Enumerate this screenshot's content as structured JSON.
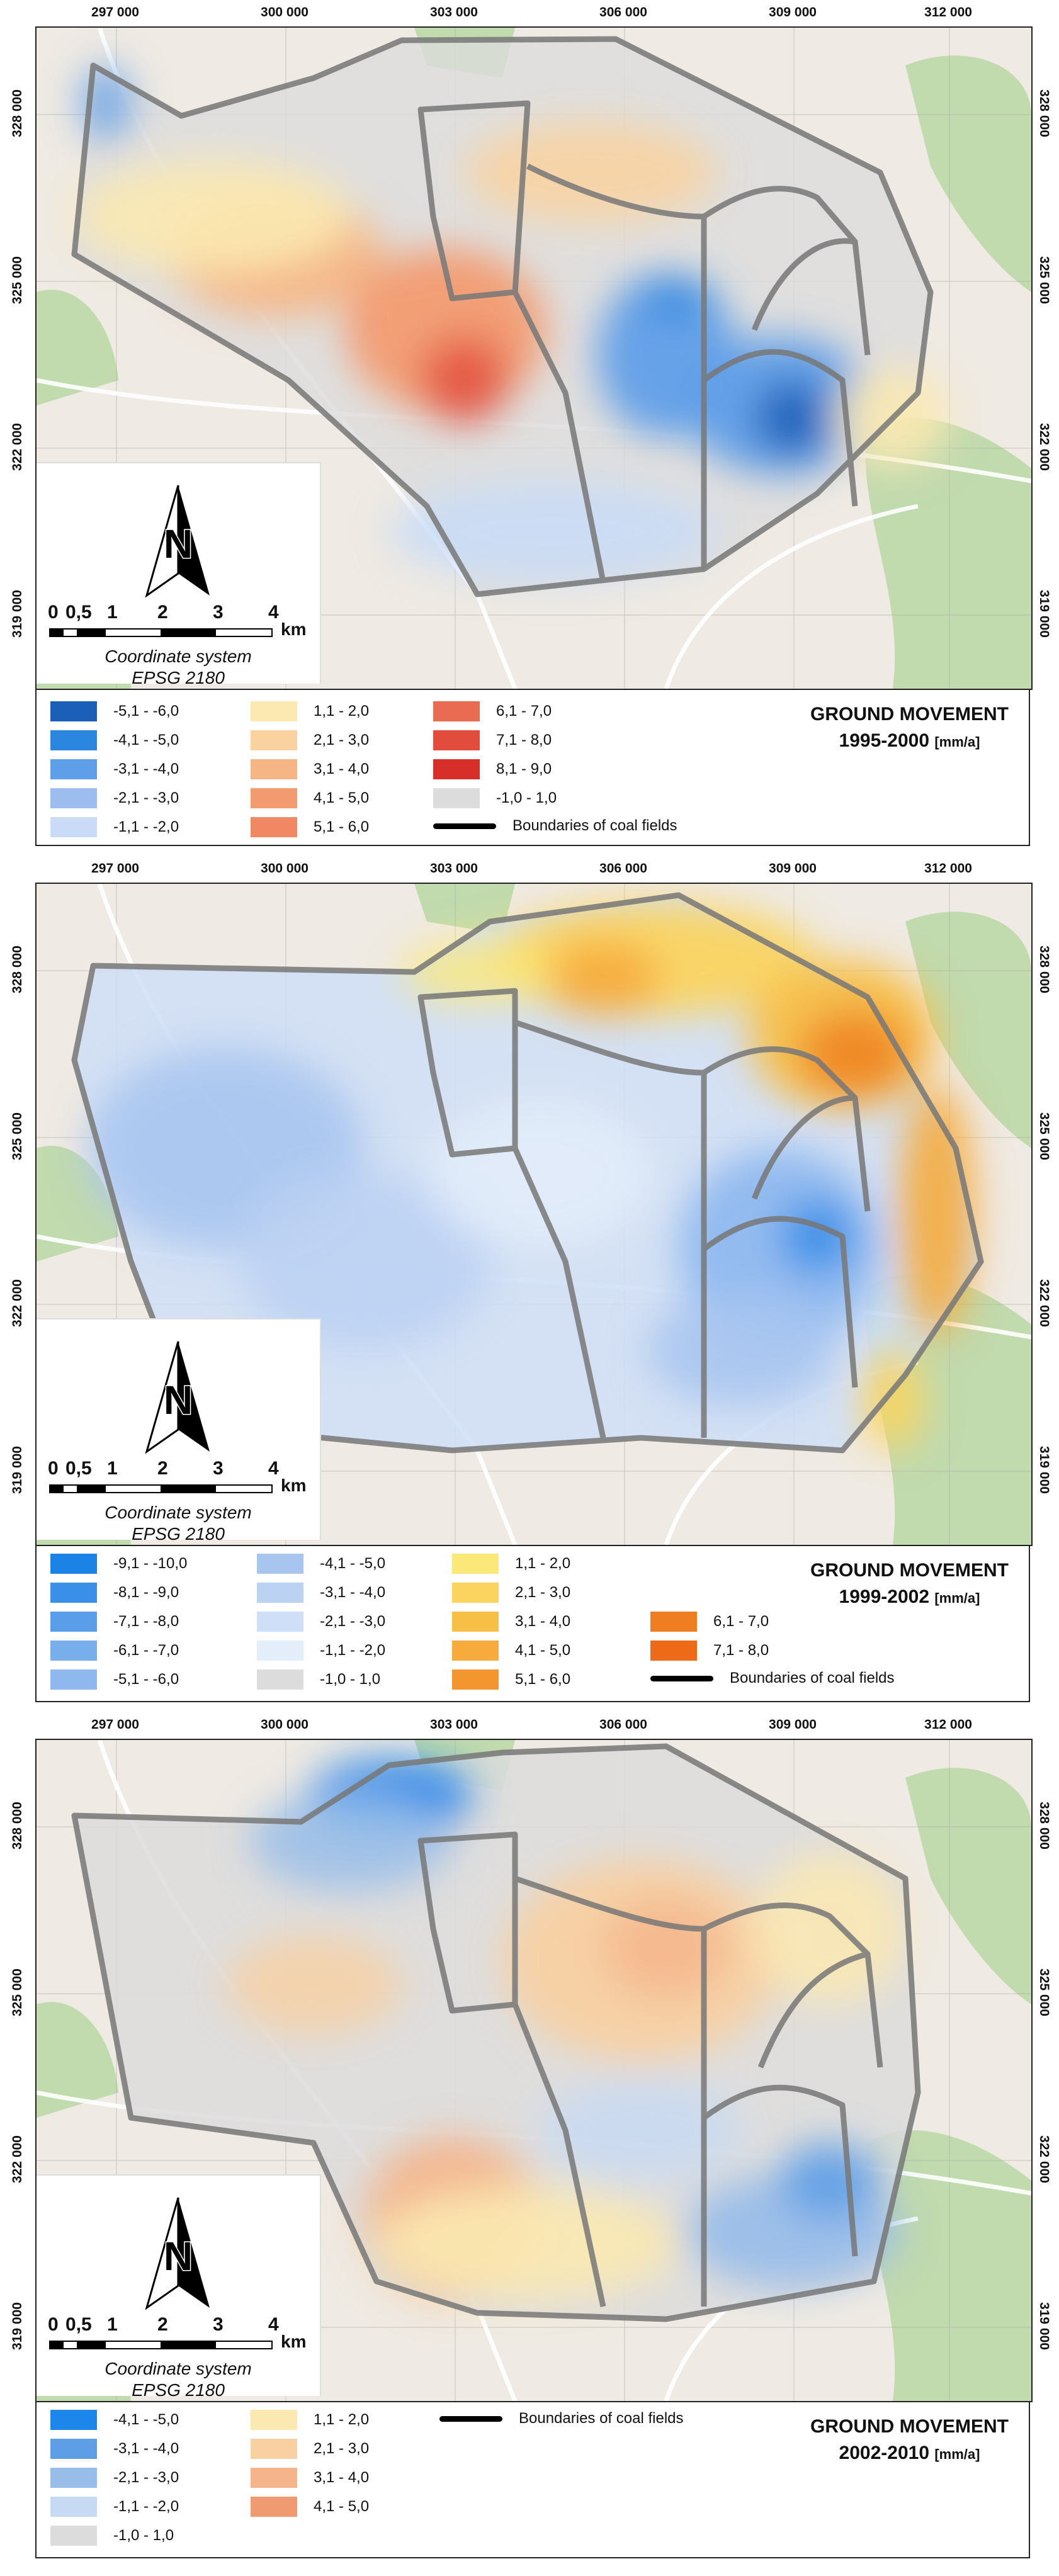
{
  "axes": {
    "x_ticks": [
      "297 000",
      "300 000",
      "303 000",
      "306 000",
      "309 000",
      "312 000"
    ],
    "y_ticks": [
      "328 000",
      "325 000",
      "322 000",
      "319 000"
    ]
  },
  "map_common": {
    "scale_labels": [
      "0",
      "0,5",
      "1",
      "2",
      "3",
      "4"
    ],
    "scale_unit": "km",
    "compass_letter": "N",
    "coord_system_line1": "Coordinate system",
    "coord_system_line2": "EPSG 2180",
    "boundary_label": "Boundaries of coal fields"
  },
  "colors": {
    "basemap": "#efeae3",
    "forest": "#b9d7a4",
    "boundary": "#777777",
    "zero_class": "#dcdcdc"
  },
  "panels": [
    {
      "title": "GROUND MOVEMENT",
      "period": "1995-2000",
      "unit": "[mm/a]",
      "legend": [
        {
          "label": "-5,1 - -6,0",
          "color": "#1c5fb8"
        },
        {
          "label": "-4,1 - -5,0",
          "color": "#2b86e0"
        },
        {
          "label": "-3,1 - -4,0",
          "color": "#5f9ee8"
        },
        {
          "label": "-2,1 - -3,0",
          "color": "#9cbdee"
        },
        {
          "label": "-1,1 - -2,0",
          "color": "#c9dbf6"
        },
        {
          "label": "1,1 - 2,0",
          "color": "#fbe9b1"
        },
        {
          "label": "2,1 - 3,0",
          "color": "#f9d29f"
        },
        {
          "label": "3,1 - 4,0",
          "color": "#f6b585"
        },
        {
          "label": "4,1 - 5,0",
          "color": "#f29b70"
        },
        {
          "label": "5,1 - 6,0",
          "color": "#ef8863"
        },
        {
          "label": "6,1 - 7,0",
          "color": "#e96b52"
        },
        {
          "label": "7,1 - 8,0",
          "color": "#e24c3c"
        },
        {
          "label": "8,1 - 9,0",
          "color": "#d82e2a"
        },
        {
          "label": "-1,0 - 1,0",
          "color": "#dcdcdc"
        }
      ]
    },
    {
      "title": "GROUND MOVEMENT",
      "period": "1999-2002",
      "unit": "[mm/a]",
      "legend": [
        {
          "label": "-9,1 - -10,0",
          "color": "#1b82e6"
        },
        {
          "label": "-8,1 - -9,0",
          "color": "#3a8fe8"
        },
        {
          "label": "-7,1 - -8,0",
          "color": "#5a9eea"
        },
        {
          "label": "-6,1 - -7,0",
          "color": "#79aeed"
        },
        {
          "label": "-5,1 - -6,0",
          "color": "#8fb8ef"
        },
        {
          "label": "-4,1 - -5,0",
          "color": "#a8c5f0"
        },
        {
          "label": "-3,1 - -4,0",
          "color": "#bcd2f3"
        },
        {
          "label": "-2,1 - -3,0",
          "color": "#cfdff7"
        },
        {
          "label": "-1,1 - -2,0",
          "color": "#e4edfa"
        },
        {
          "label": "-1,0 - 1,0",
          "color": "#dcdcdc"
        },
        {
          "label": "1,1 - 2,0",
          "color": "#fce878"
        },
        {
          "label": "2,1 - 3,0",
          "color": "#fbd45f"
        },
        {
          "label": "3,1 - 4,0",
          "color": "#f8bf47"
        },
        {
          "label": "4,1 - 5,0",
          "color": "#f6ab3c"
        },
        {
          "label": "5,1 - 6,0",
          "color": "#f3962f"
        },
        {
          "label": "6,1 - 7,0",
          "color": "#ef7e22"
        },
        {
          "label": "7,1 - 8,0",
          "color": "#ec6a18"
        }
      ]
    },
    {
      "title": "GROUND MOVEMENT",
      "period": "2002-2010",
      "unit": "[mm/a]",
      "legend": [
        {
          "label": "-4,1 - -5,0",
          "color": "#1c86ea"
        },
        {
          "label": "-3,1 - -4,0",
          "color": "#5e9ee6"
        },
        {
          "label": "-2,1 - -3,0",
          "color": "#99bde9"
        },
        {
          "label": "-1,1 - -2,0",
          "color": "#c6daf4"
        },
        {
          "label": "-1,0 - 1,0",
          "color": "#dcdcdc"
        },
        {
          "label": "1,1 - 2,0",
          "color": "#fbe9b1"
        },
        {
          "label": "2,1 - 3,0",
          "color": "#f8d0a2"
        },
        {
          "label": "3,1 - 4,0",
          "color": "#f5b48a"
        },
        {
          "label": "4,1 - 5,0",
          "color": "#f09a72"
        }
      ]
    }
  ]
}
